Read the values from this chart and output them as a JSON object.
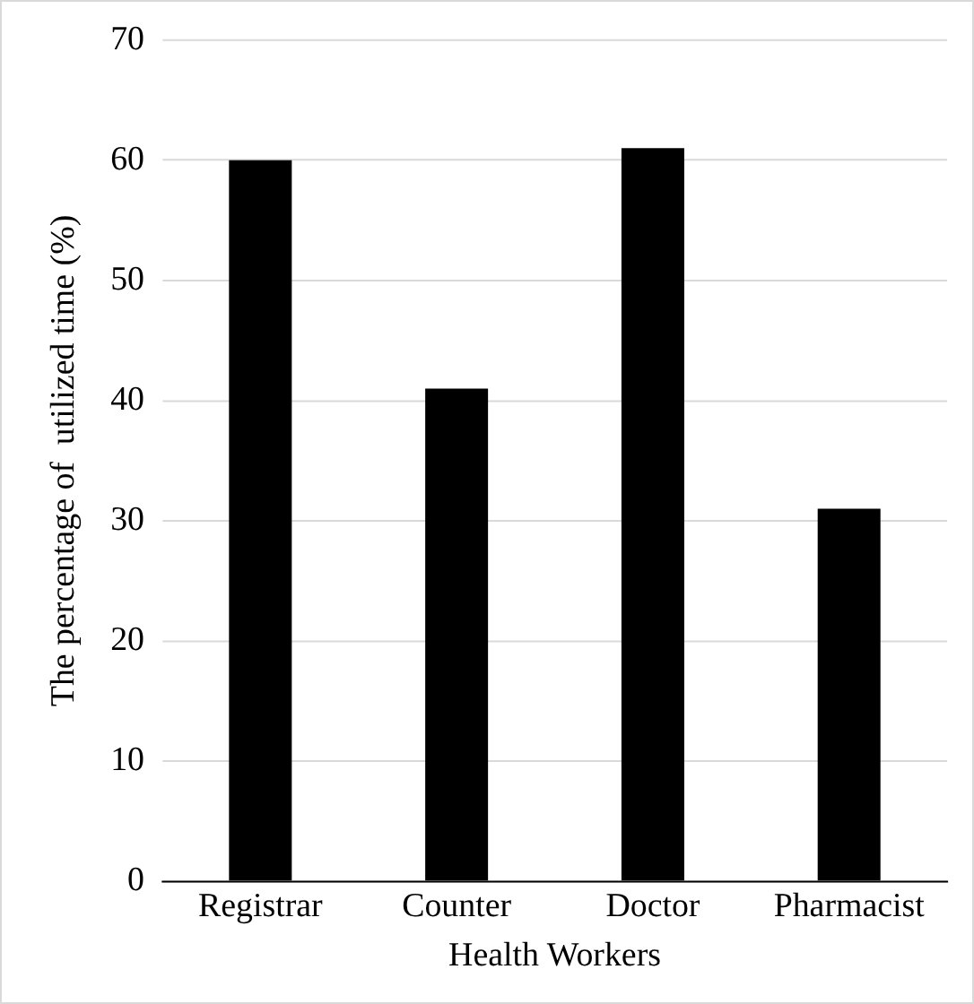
{
  "chart_data": {
    "type": "bar",
    "xlabel": "Health Workers",
    "ylabel": "The percentage of  utilized time (%)",
    "categories": [
      "Registrar",
      "Counter",
      "Doctor",
      "Pharmacist"
    ],
    "values": [
      60,
      41,
      61,
      31
    ],
    "color": "#000000",
    "ylim": [
      0,
      70
    ],
    "yticks": [
      0,
      10,
      20,
      30,
      40,
      50,
      60,
      70
    ],
    "grid": "y"
  }
}
